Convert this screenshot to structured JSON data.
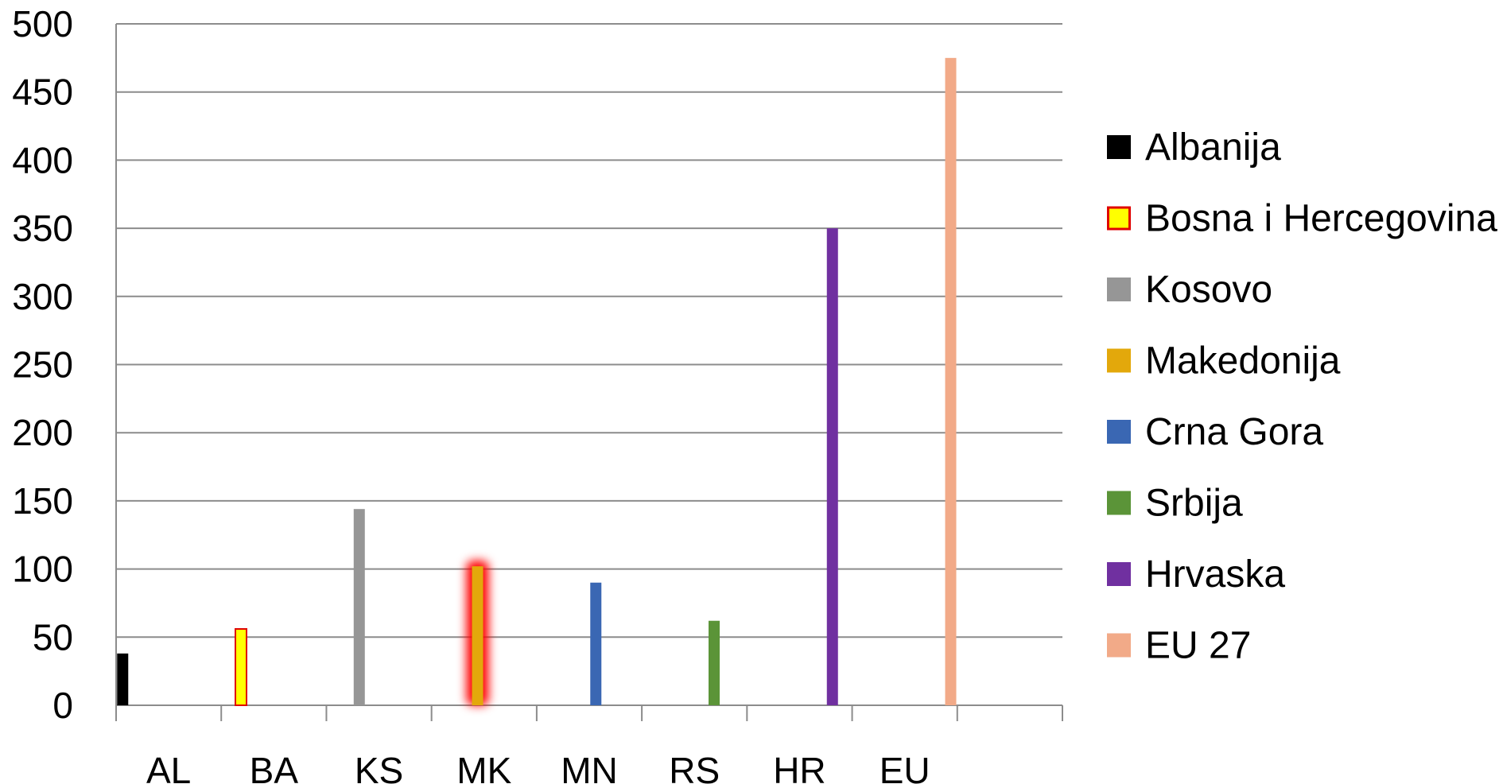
{
  "chart_data": {
    "type": "bar",
    "categories": [
      "AL",
      "BA",
      "KS",
      "MK",
      "MN",
      "RS",
      "HR",
      "EU"
    ],
    "series": [
      {
        "name": "Albanija",
        "values": [
          38,
          null,
          null,
          null,
          null,
          null,
          null,
          null
        ],
        "color": "#000000"
      },
      {
        "name": "Bosna i Hercegovina",
        "values": [
          null,
          56,
          null,
          null,
          null,
          null,
          null,
          null
        ],
        "color": "#ffff00",
        "stroke": "#e00000"
      },
      {
        "name": "Kosovo",
        "values": [
          null,
          null,
          144,
          null,
          null,
          null,
          null,
          null
        ],
        "color": "#969696"
      },
      {
        "name": "Makedonija",
        "values": [
          null,
          null,
          null,
          102,
          null,
          null,
          null,
          null
        ],
        "color": "#e3a80b",
        "highlight": "#ff0000"
      },
      {
        "name": "Crna Gora",
        "values": [
          null,
          null,
          null,
          null,
          90,
          null,
          null,
          null
        ],
        "color": "#3a67b3"
      },
      {
        "name": "Srbija",
        "values": [
          null,
          null,
          null,
          null,
          null,
          62,
          null,
          null
        ],
        "color": "#5b9438"
      },
      {
        "name": "Hrvaska",
        "values": [
          null,
          null,
          null,
          null,
          null,
          null,
          350,
          null
        ],
        "color": "#7030a0"
      },
      {
        "name": "EU 27",
        "values": [
          null,
          null,
          null,
          null,
          null,
          null,
          null,
          475
        ],
        "color": "#f2aa88"
      }
    ],
    "yticks": [
      "0",
      "50",
      "100",
      "150",
      "200",
      "250",
      "300",
      "350",
      "400",
      "450",
      "500"
    ],
    "ylim": [
      0,
      500
    ],
    "grid": true,
    "legend": "right"
  }
}
